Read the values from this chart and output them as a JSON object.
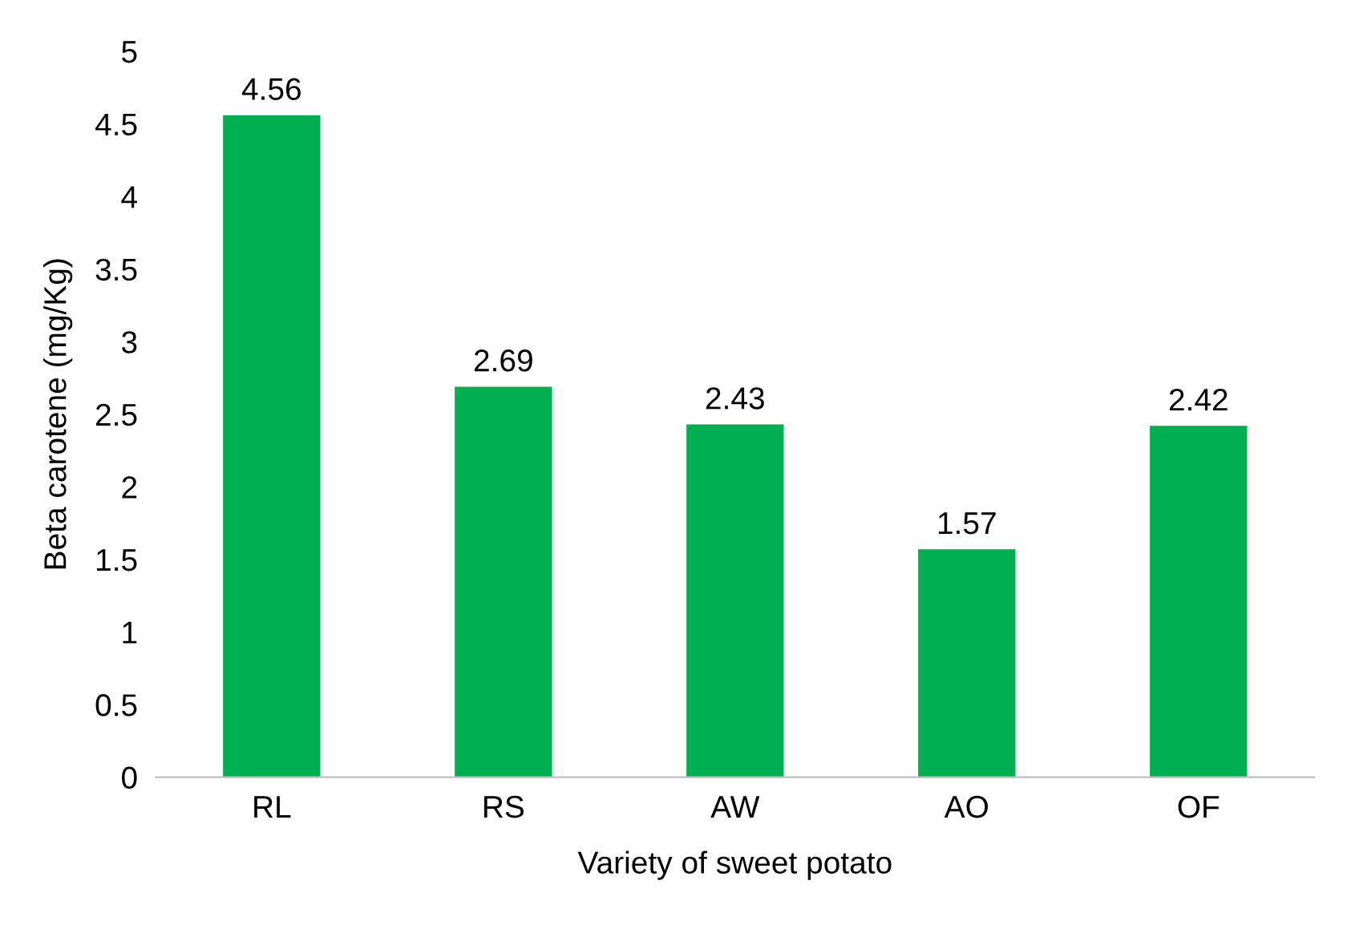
{
  "chart_data": {
    "type": "bar",
    "xlabel": "Variety of sweet potato",
    "ylabel": "Beta carotene (mg/Kg)",
    "categories": [
      "RL",
      "RS",
      "AW",
      "AO",
      "OF"
    ],
    "values": [
      4.56,
      2.69,
      2.43,
      1.57,
      2.42
    ],
    "color": "#00b050",
    "ylim": [
      0,
      5
    ],
    "yticks": [
      0,
      0.5,
      1,
      1.5,
      2,
      2.5,
      3,
      3.5,
      4,
      4.5,
      5
    ],
    "data_labels": true,
    "grid": false,
    "legend": false
  }
}
